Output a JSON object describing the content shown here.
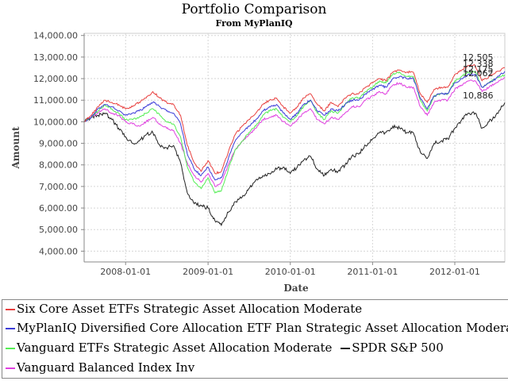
{
  "chart_data": {
    "type": "line",
    "title": "Portfolio Comparison",
    "subtitle": "From MyPlanIQ",
    "xlabel": "Date",
    "ylabel": "Amount",
    "x_ticks": [
      "2008-01-01",
      "2009-01-01",
      "2010-01-01",
      "2011-01-01",
      "2012-01-01"
    ],
    "y_ticks": [
      "4,000.00",
      "5,000.00",
      "6,000.00",
      "7,000.00",
      "8,000.00",
      "9,000.00",
      "10,000.00",
      "11,000.00",
      "12,000.00",
      "13,000.00",
      "14,000.00"
    ],
    "ylim": [
      3500,
      14100
    ],
    "xlim": [
      "2007-07-01",
      "2012-08-10"
    ],
    "grid": true,
    "legend_position": "bottom",
    "dates": [
      "2007-07-01",
      "2007-08-01",
      "2007-09-01",
      "2007-10-01",
      "2007-11-01",
      "2007-12-01",
      "2008-01-01",
      "2008-02-01",
      "2008-03-01",
      "2008-04-01",
      "2008-05-01",
      "2008-06-01",
      "2008-07-01",
      "2008-08-01",
      "2008-09-01",
      "2008-10-01",
      "2008-11-01",
      "2008-12-01",
      "2009-01-01",
      "2009-02-01",
      "2009-03-01",
      "2009-04-01",
      "2009-05-01",
      "2009-06-01",
      "2009-07-01",
      "2009-08-01",
      "2009-09-01",
      "2009-10-01",
      "2009-11-01",
      "2009-12-01",
      "2010-01-01",
      "2010-02-01",
      "2010-03-01",
      "2010-04-01",
      "2010-05-01",
      "2010-06-01",
      "2010-07-01",
      "2010-08-01",
      "2010-09-01",
      "2010-10-01",
      "2010-11-01",
      "2010-12-01",
      "2011-01-01",
      "2011-02-01",
      "2011-03-01",
      "2011-04-01",
      "2011-05-01",
      "2011-06-01",
      "2011-07-01",
      "2011-08-01",
      "2011-09-01",
      "2011-10-01",
      "2011-11-01",
      "2011-12-01",
      "2012-01-01",
      "2012-02-01",
      "2012-03-01",
      "2012-04-01",
      "2012-05-01",
      "2012-06-01",
      "2012-07-01",
      "2012-08-10"
    ],
    "series": [
      {
        "name": "Six Core Asset ETFs Strategic Asset Allocation Moderate",
        "color": "#e8403f",
        "end_label": "12,505",
        "values": [
          10000,
          10300,
          10700,
          11000,
          10900,
          10800,
          10600,
          10700,
          10900,
          11100,
          11400,
          11100,
          10900,
          10800,
          10300,
          8900,
          8100,
          7700,
          8200,
          7600,
          7700,
          8600,
          9400,
          9800,
          10100,
          10400,
          10800,
          11000,
          11100,
          10700,
          10400,
          10700,
          11100,
          11300,
          10800,
          10500,
          10900,
          10700,
          11100,
          11300,
          11300,
          11600,
          11800,
          12000,
          11900,
          12300,
          12400,
          12300,
          12300,
          11300,
          10900,
          11500,
          11600,
          11600,
          12200,
          12400,
          12600,
          12600,
          11900,
          12100,
          12300,
          12505
        ]
      },
      {
        "name": "MyPlanIQ Diversified Core Allocation ETF Plan Strategic Asset Allocation Moderate",
        "color": "#3c3cd8",
        "end_label": "12,338",
        "values": [
          10000,
          10200,
          10600,
          10800,
          10700,
          10500,
          10300,
          10400,
          10500,
          10700,
          10900,
          10700,
          10500,
          10400,
          9900,
          8500,
          7800,
          7500,
          7900,
          7300,
          7400,
          8300,
          9100,
          9500,
          9800,
          10100,
          10500,
          10700,
          10800,
          10400,
          10100,
          10400,
          10800,
          11000,
          10500,
          10300,
          10600,
          10500,
          10800,
          11000,
          11000,
          11300,
          11500,
          11700,
          11600,
          12000,
          12100,
          12000,
          12000,
          11100,
          10600,
          11200,
          11300,
          11300,
          11800,
          12000,
          12200,
          12200,
          11600,
          11800,
          12000,
          12338
        ]
      },
      {
        "name": "Vanguard ETFs Strategic Asset Allocation Moderate",
        "color": "#55ee55",
        "end_label": "12,175",
        "values": [
          10000,
          10200,
          10500,
          10800,
          10600,
          10400,
          10100,
          10100,
          10200,
          10400,
          10600,
          10300,
          10000,
          9900,
          9300,
          7900,
          7200,
          6900,
          7400,
          6700,
          6800,
          7800,
          8700,
          9100,
          9500,
          9800,
          10300,
          10500,
          10600,
          10200,
          10000,
          10300,
          10700,
          11000,
          10400,
          10100,
          10500,
          10400,
          10800,
          11100,
          11100,
          11400,
          11600,
          11900,
          11800,
          12200,
          12300,
          12100,
          12100,
          11000,
          10500,
          11200,
          11300,
          11300,
          11900,
          12100,
          12300,
          12300,
          11600,
          11800,
          12000,
          12175
        ]
      },
      {
        "name": "Vanguard Balanced Index Inv",
        "color": "#e040e0",
        "end_label": "12,062",
        "values": [
          10000,
          10200,
          10400,
          10600,
          10400,
          10300,
          10000,
          9900,
          9800,
          10000,
          10200,
          9900,
          9700,
          9600,
          9000,
          8100,
          7500,
          7200,
          7600,
          7000,
          7200,
          8000,
          8700,
          9100,
          9400,
          9700,
          10100,
          10200,
          10300,
          10000,
          9800,
          10100,
          10400,
          10600,
          10100,
          9900,
          10200,
          10100,
          10400,
          10700,
          10700,
          11000,
          11200,
          11400,
          11300,
          11700,
          11800,
          11600,
          11600,
          10700,
          10300,
          10900,
          11000,
          11000,
          11500,
          11700,
          11900,
          11900,
          11400,
          11600,
          11800,
          12062
        ]
      },
      {
        "name": "SPDR S&P 500",
        "color": "#222222",
        "end_label": "10,886",
        "values": [
          10000,
          10200,
          10300,
          10400,
          10100,
          9700,
          9300,
          9000,
          9100,
          9400,
          9500,
          8900,
          8800,
          8900,
          8100,
          6700,
          6200,
          6100,
          6000,
          5400,
          5200,
          5800,
          6300,
          6500,
          6900,
          7300,
          7500,
          7600,
          7800,
          7900,
          7600,
          7900,
          8200,
          8400,
          7800,
          7500,
          7800,
          7700,
          8000,
          8400,
          8500,
          8900,
          9200,
          9500,
          9500,
          9800,
          9700,
          9500,
          9500,
          8600,
          8300,
          9000,
          9100,
          9200,
          9700,
          10100,
          10400,
          10400,
          9700,
          10000,
          10300,
          10886
        ]
      }
    ]
  },
  "legend": {
    "row1": "Six Core Asset ETFs Strategic Asset Allocation Moderate",
    "row2": "MyPlanIQ Diversified Core Allocation ETF Plan Strategic Asset Allocation Moderate",
    "row3a": "Vanguard ETFs Strategic Asset Allocation Moderate",
    "row3b": "SPDR S&P 500",
    "row4": "Vanguard Balanced Index Inv"
  }
}
